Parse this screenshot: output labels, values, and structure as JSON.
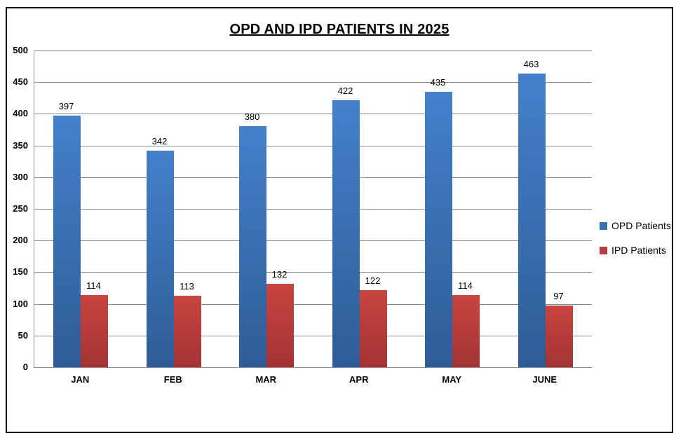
{
  "chart_data": {
    "type": "bar",
    "title": "OPD AND IPD PATIENTS IN 2025",
    "categories": [
      "JAN",
      "FEB",
      "MAR",
      "APR",
      "MAY",
      "JUNE"
    ],
    "series": [
      {
        "name": "OPD Patients",
        "values": [
          397,
          342,
          380,
          422,
          435,
          463
        ],
        "color": "#3A6FB2",
        "gradient_top": "#4480CB",
        "gradient_bottom": "#2E5C96"
      },
      {
        "name": "IPD Patients",
        "values": [
          114,
          113,
          132,
          122,
          114,
          97
        ],
        "color": "#B83B3D",
        "gradient_top": "#C8443F",
        "gradient_bottom": "#A43335"
      }
    ],
    "xlabel": "",
    "ylabel": "",
    "ylim": [
      0,
      500
    ],
    "ytick_step": 50,
    "yticks": [
      0,
      50,
      100,
      150,
      200,
      250,
      300,
      350,
      400,
      450,
      500
    ],
    "grid": true,
    "legend_position": "right",
    "data_labels": true
  },
  "style": {
    "frame_border_color": "#000000",
    "background_color": "#FFFFFF",
    "gridline_color": "#8C8C8C",
    "text_color": "#000000"
  }
}
